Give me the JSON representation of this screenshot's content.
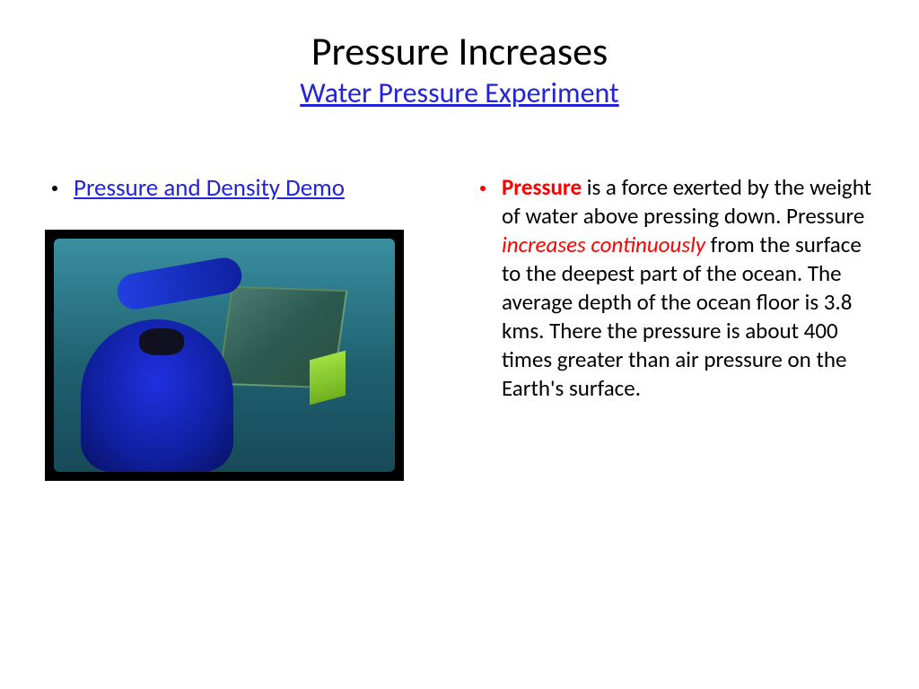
{
  "title": "Pressure Increases",
  "subtitle_link": "Water Pressure Experiment",
  "left": {
    "link_text": "Pressure and Density Demo",
    "image_alt": "underwater-diver-photo"
  },
  "right": {
    "pressure_label": "Pressure",
    "text1": " is a force exerted by the weight of water above pressing down. Pressure ",
    "increases_label": "increases continuously",
    "text2": " from the surface to the deepest part of the ocean. The average depth of the ocean floor is 3.8 kms. There the pressure is about 400 times greater than air pressure on the Earth's surface."
  },
  "colors": {
    "link": "#2323d8",
    "emphasis": "#ff0000",
    "text": "#000000",
    "bg": "#ffffff"
  }
}
